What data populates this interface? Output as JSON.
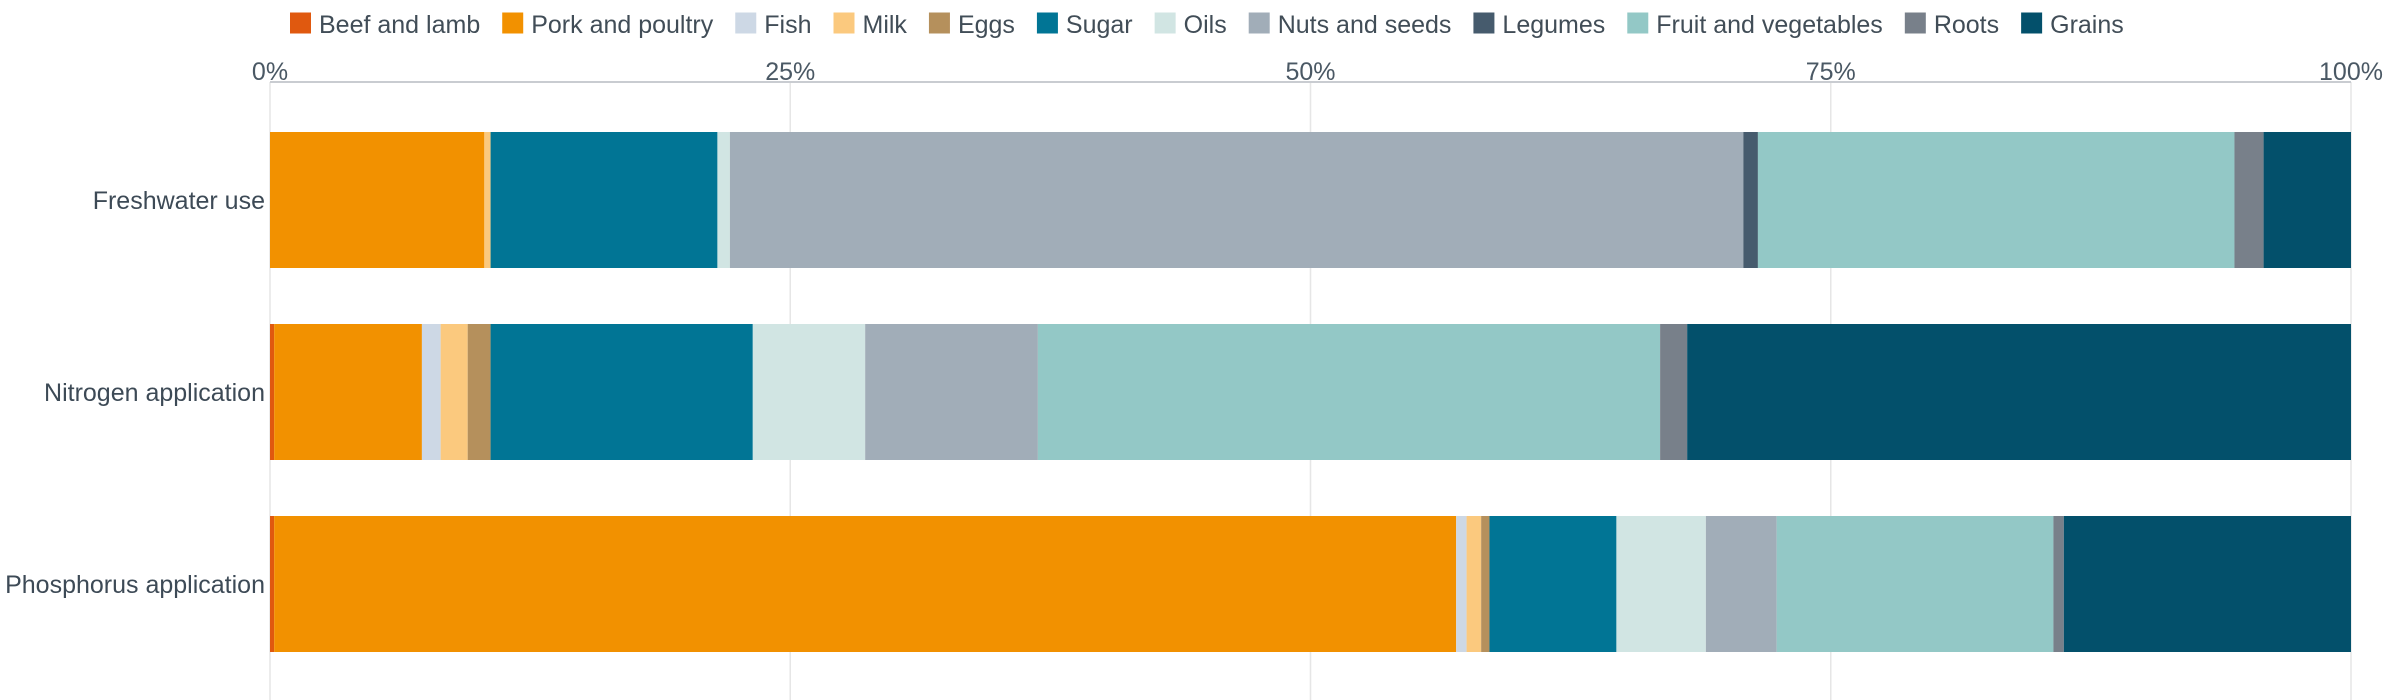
{
  "chart_data": {
    "type": "bar",
    "orientation": "horizontal",
    "stacked": true,
    "normalized": true,
    "title": "",
    "xlabel": "",
    "ylabel": "",
    "xlim": [
      0,
      100
    ],
    "x_ticks": [
      "0%",
      "25%",
      "50%",
      "75%",
      "100%"
    ],
    "grid": true,
    "legend_position": "top",
    "categories": [
      "Freshwater use",
      "Nitrogen application",
      "Phosphorus application"
    ],
    "series": [
      {
        "name": "Beef and lamb",
        "color": "#e0590f",
        "values": [
          0.0,
          0.2,
          0.2
        ]
      },
      {
        "name": "Pork and poultry",
        "color": "#f29100",
        "values": [
          10.3,
          7.1,
          56.8
        ]
      },
      {
        "name": "Fish",
        "color": "#cdd8e5",
        "values": [
          0.0,
          0.9,
          0.5
        ]
      },
      {
        "name": "Milk",
        "color": "#fbc97e",
        "values": [
          0.3,
          1.3,
          0.7
        ]
      },
      {
        "name": "Eggs",
        "color": "#b5905c",
        "values": [
          0.0,
          1.1,
          0.4
        ]
      },
      {
        "name": "Sugar",
        "color": "#017595",
        "values": [
          10.9,
          12.6,
          6.1
        ]
      },
      {
        "name": "Oils",
        "color": "#d1e5e3",
        "values": [
          0.6,
          5.4,
          4.3
        ]
      },
      {
        "name": "Nuts and seeds",
        "color": "#a1adb8",
        "values": [
          48.7,
          8.3,
          3.4
        ]
      },
      {
        "name": "Legumes",
        "color": "#465b6d",
        "values": [
          0.7,
          0.0,
          0.0
        ]
      },
      {
        "name": "Fruit and vegetables",
        "color": "#93c8c6",
        "values": [
          22.9,
          29.9,
          13.3
        ]
      },
      {
        "name": "Roots",
        "color": "#78808a",
        "values": [
          1.4,
          1.3,
          0.5
        ]
      },
      {
        "name": "Grains",
        "color": "#03506b",
        "values": [
          4.2,
          31.9,
          13.8
        ]
      }
    ]
  }
}
